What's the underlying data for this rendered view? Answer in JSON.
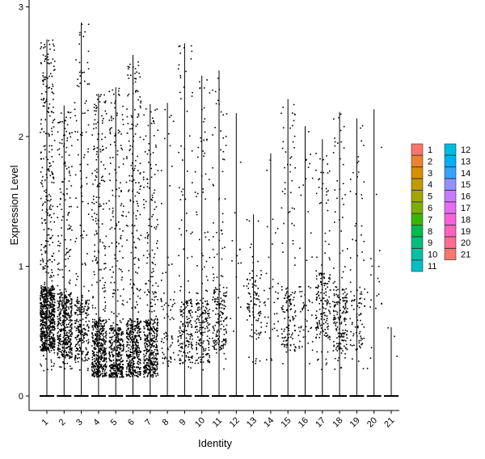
{
  "chart_data": {
    "type": "violin",
    "xlabel": "Identity",
    "ylabel": "Expression Level",
    "ylim": [
      -0.12,
      3.02
    ],
    "y_ticks": [
      0,
      1,
      2,
      3
    ],
    "grid": false,
    "legend_position": "right",
    "categories": [
      "1",
      "2",
      "3",
      "4",
      "5",
      "6",
      "7",
      "8",
      "9",
      "10",
      "11",
      "12",
      "13",
      "14",
      "15",
      "16",
      "17",
      "18",
      "19",
      "20",
      "21"
    ],
    "colors": [
      "#F8766D",
      "#EA8331",
      "#D89000",
      "#C09B00",
      "#A3A500",
      "#7CAE00",
      "#39B600",
      "#00BB4E",
      "#00BF7D",
      "#00C1A3",
      "#00BFC4",
      "#00BAE0",
      "#00B0F6",
      "#35A2FF",
      "#9590FF",
      "#C77CFF",
      "#E76BF3",
      "#FA62DB",
      "#FF62BC",
      "#FF6C91",
      "#F8766D"
    ],
    "max_values": [
      2.75,
      2.24,
      2.88,
      2.33,
      2.38,
      2.63,
      2.25,
      2.26,
      2.72,
      2.47,
      2.51,
      2.18,
      1.4,
      1.87,
      2.29,
      2.08,
      1.98,
      2.19,
      2.14,
      2.21,
      0.53
    ],
    "point_counts": [
      900,
      500,
      300,
      550,
      450,
      500,
      450,
      80,
      200,
      200,
      200,
      15,
      100,
      40,
      150,
      60,
      180,
      200,
      100,
      20,
      3
    ],
    "point_center": [
      0.6,
      0.55,
      0.5,
      0.35,
      0.28,
      0.35,
      0.35,
      0.5,
      0.5,
      0.5,
      0.6,
      0.9,
      0.7,
      0.7,
      0.6,
      0.6,
      0.7,
      0.6,
      0.6,
      0.9,
      0.5
    ]
  }
}
